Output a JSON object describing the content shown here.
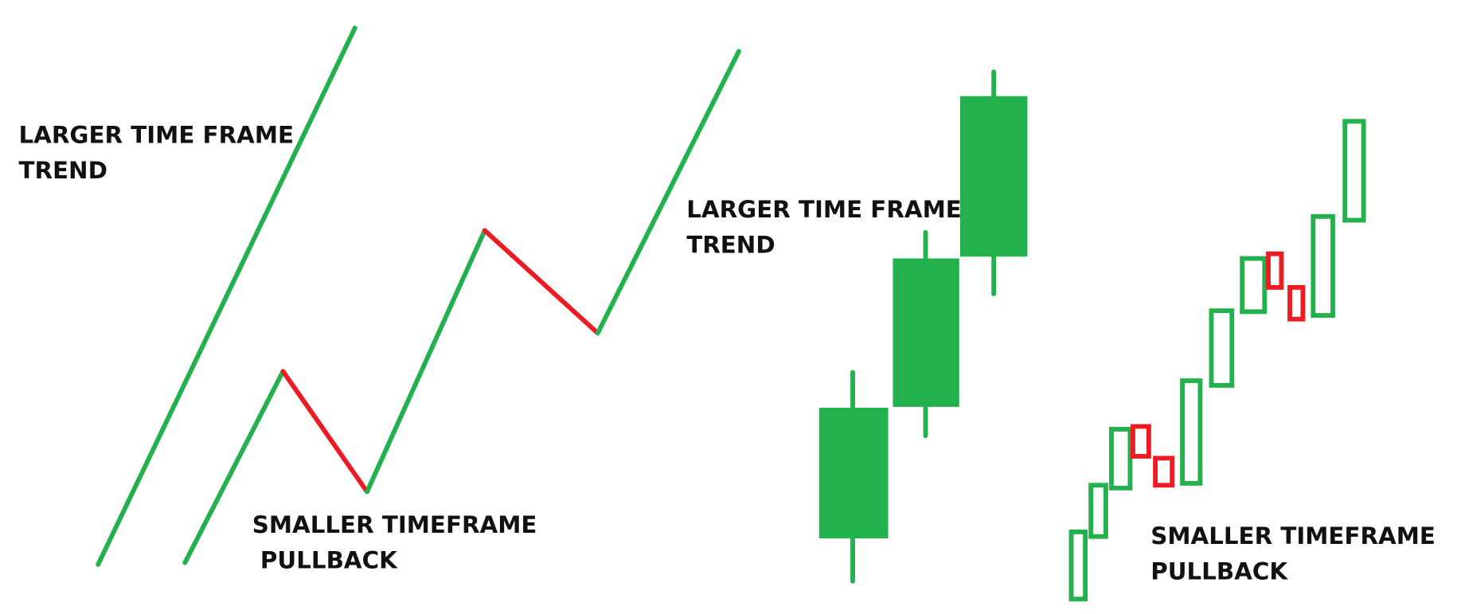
{
  "left": {
    "trend_label": [
      "LARGER TIME FRAME",
      "TREND"
    ],
    "pullback_label": [
      "SMALLER TIMEFRAME",
      " PULLBACK"
    ]
  },
  "right": {
    "trend_label": [
      "LARGER TIME FRAME",
      "TREND"
    ],
    "pullback_label": [
      "SMALLER TIMEFRAME",
      "PULLBACK"
    ]
  }
}
